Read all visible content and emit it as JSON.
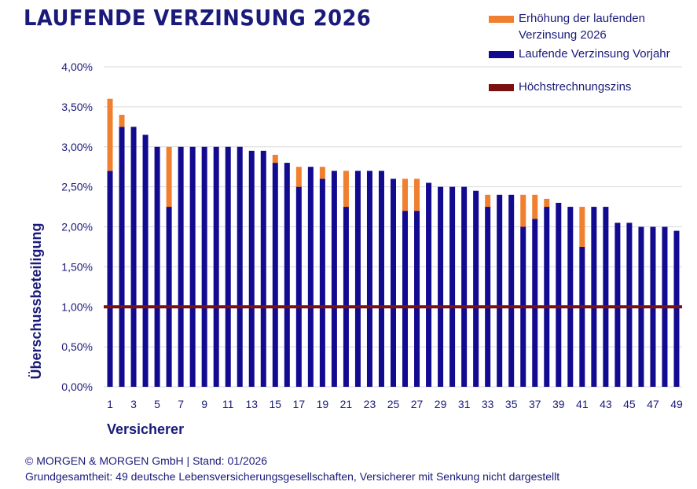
{
  "chart_data": {
    "type": "bar",
    "stacked": true,
    "title": "LAUFENDE VERZINSUNG 2026",
    "xlabel": "Versicherer",
    "ylabel": "Überschussbeteiligung",
    "ylim": [
      0,
      4.0
    ],
    "yticks": [
      "0,00%",
      "0,50%",
      "1,00%",
      "1,50%",
      "2,00%",
      "2,50%",
      "3,00%",
      "3,50%",
      "4,00%"
    ],
    "xtick_labels": [
      "1",
      "3",
      "5",
      "7",
      "9",
      "11",
      "13",
      "15",
      "17",
      "19",
      "21",
      "23",
      "25",
      "27",
      "29",
      "31",
      "33",
      "35",
      "37",
      "39",
      "41",
      "43",
      "45",
      "47",
      "49"
    ],
    "categories": [
      1,
      2,
      3,
      4,
      5,
      6,
      7,
      8,
      9,
      10,
      11,
      12,
      13,
      14,
      15,
      16,
      17,
      18,
      19,
      20,
      21,
      22,
      23,
      24,
      25,
      26,
      27,
      28,
      29,
      30,
      31,
      32,
      33,
      34,
      35,
      36,
      37,
      38,
      39,
      40,
      41,
      42,
      43,
      44,
      45,
      46,
      47,
      48,
      49
    ],
    "series": [
      {
        "name": "Laufende Verzinsung Vorjahr",
        "color": "#120a8f",
        "values": [
          2.7,
          3.25,
          3.25,
          3.15,
          3.0,
          2.25,
          3.0,
          3.0,
          3.0,
          3.0,
          3.0,
          3.0,
          2.95,
          2.95,
          2.8,
          2.8,
          2.5,
          2.75,
          2.6,
          2.7,
          2.25,
          2.7,
          2.7,
          2.7,
          2.6,
          2.2,
          2.2,
          2.55,
          2.5,
          2.5,
          2.5,
          2.45,
          2.25,
          2.4,
          2.4,
          2.0,
          2.1,
          2.25,
          2.3,
          2.25,
          1.75,
          2.25,
          2.25,
          2.05,
          2.05,
          2.0,
          2.0,
          2.0,
          1.95
        ]
      },
      {
        "name": "Erhöhung der laufenden Verzinsung 2026",
        "color": "#f08030",
        "values": [
          0.9,
          0.15,
          0,
          0,
          0,
          0.75,
          0,
          0,
          0,
          0,
          0,
          0,
          0,
          0,
          0.1,
          0,
          0.25,
          0,
          0.15,
          0,
          0.45,
          0,
          0,
          0,
          0,
          0.4,
          0.4,
          0,
          0,
          0,
          0,
          0,
          0.15,
          0,
          0,
          0.4,
          0.3,
          0.1,
          0,
          0,
          0.5,
          0,
          0,
          0,
          0,
          0,
          0,
          0,
          0
        ]
      }
    ],
    "reference_line": {
      "name": "Höchstrechnungszins",
      "value": 1.0,
      "color": "#7a1010"
    },
    "grid": true,
    "legend_position": "top-right"
  },
  "legend": {
    "increase_line1": "Erhöhung der laufenden",
    "increase_line2": "Verzinsung 2026",
    "previous": "Laufende Verzinsung Vorjahr",
    "max_rate": "Höchstrechnungszins"
  },
  "footer": {
    "line1": "© MORGEN & MORGEN GmbH | Stand: 01/2026",
    "line2": "Grundgesamtheit: 49 deutsche Lebensversicherungsgesellschaften, Versicherer mit Senkung nicht dargestellt"
  }
}
